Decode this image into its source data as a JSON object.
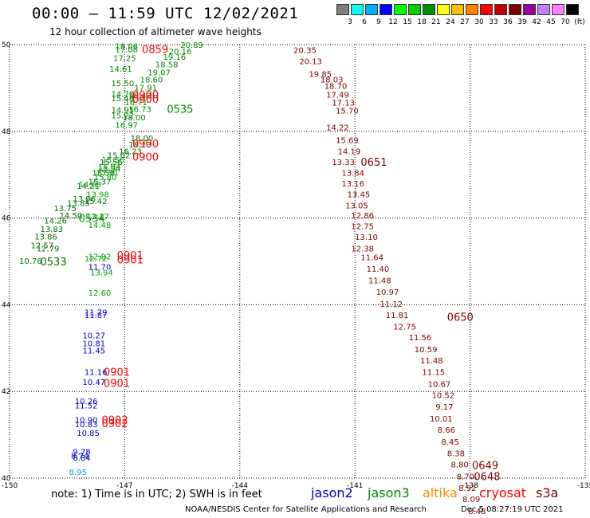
{
  "header": {
    "title": "00:00 – 11:59 UTC 12/02/2021",
    "subtitle": "12 hour collection of altimeter wave heights"
  },
  "color_scale": {
    "colors": [
      "#808080",
      "#00ffff",
      "#00b0ff",
      "#0000ff",
      "#00ff00",
      "#00d000",
      "#009000",
      "#ffff00",
      "#ffc000",
      "#ff8000",
      "#ff0000",
      "#c00000",
      "#800000",
      "#a000a0",
      "#c080ff",
      "#ff80ff",
      "#000000"
    ],
    "labels": [
      "3",
      "6",
      "9",
      "12",
      "15",
      "18",
      "21",
      "24",
      "27",
      "30",
      "33",
      "36",
      "39",
      "42",
      "45",
      "70",
      "(ft)"
    ]
  },
  "footer": {
    "note": "note:  1) Time is in UTC;  2) SWH is in feet",
    "satellites": [
      {
        "name": "jason2",
        "color": "#0000cc"
      },
      {
        "name": "jason3",
        "color": "#008800"
      },
      {
        "name": "altika",
        "color": "#ff8800"
      },
      {
        "name": "cryosat",
        "color": "#ff0000"
      },
      {
        "name": "s3a",
        "color": "#800000"
      }
    ],
    "credit": "NOAA/NESDIS Center for Satellite Applications and Research",
    "generated": "Dec  5 08:27:19 UTC 2021"
  },
  "chart_data": {
    "type": "scatter",
    "xlim": [
      -150,
      -135
    ],
    "ylim": [
      40,
      50
    ],
    "xticks": [
      -150,
      -147,
      -144,
      -141,
      -138,
      -135
    ],
    "yticks": [
      40,
      42,
      44,
      46,
      48,
      50
    ],
    "grid": "dotted",
    "xtick_labels": [
      "-150",
      "-147",
      "-144",
      "-141",
      "-138",
      "-135"
    ],
    "ytick_labels": [
      "40",
      "42",
      "44",
      "46",
      "48",
      "50"
    ],
    "tracks": [
      {
        "name": "track-0533",
        "color": "#007000",
        "time_label": "0533",
        "time_at": [
          -149.2,
          45.0
        ],
        "points": [
          [
            -149.75,
            45.02,
            "10.76"
          ],
          [
            -149.3,
            45.3,
            "12.79"
          ],
          [
            -149.45,
            45.38,
            "12.57"
          ],
          [
            -149.35,
            45.58,
            "13.86"
          ],
          [
            -149.2,
            45.75,
            "13.83"
          ],
          [
            -149.1,
            45.95,
            "14.26"
          ],
          [
            -148.7,
            46.07,
            "14.50"
          ],
          [
            -148.85,
            46.23,
            "13.75"
          ],
          [
            -148.5,
            46.35,
            "13.85"
          ],
          [
            -148.35,
            46.45,
            "13.96"
          ],
          [
            -148.05,
            46.4,
            "15.42"
          ],
          [
            -148.25,
            46.75,
            "14.21"
          ],
          [
            -147.95,
            46.85,
            "15.37"
          ],
          [
            -147.85,
            47.05,
            "15.50"
          ],
          [
            -147.7,
            47.15,
            "15.94"
          ],
          [
            -147.65,
            47.3,
            "15.56"
          ],
          [
            -147.45,
            47.45,
            "15.02"
          ],
          [
            -147.15,
            47.55,
            "16.23"
          ],
          [
            -146.9,
            47.7,
            "18.13"
          ],
          [
            -146.85,
            47.85,
            "18.00"
          ]
        ]
      },
      {
        "name": "track-0534",
        "color": "#00a000",
        "time_label": "0534",
        "time_at": [
          -148.2,
          46.0
        ],
        "points": [
          [
            -148.05,
            45.07,
            "12.72"
          ],
          [
            -147.95,
            45.12,
            "12.82"
          ],
          [
            -147.9,
            44.75,
            "13.94"
          ],
          [
            -147.95,
            44.28,
            "12.60"
          ],
          [
            -148.0,
            46.05,
            "13.17"
          ],
          [
            -147.95,
            45.85,
            "14.48"
          ],
          [
            -148.2,
            46.78,
            "14.68"
          ],
          [
            -148.0,
            46.55,
            "13.98"
          ],
          [
            -147.8,
            46.95,
            "15.80"
          ],
          [
            -147.75,
            47.06,
            "15.91"
          ],
          [
            -147.7,
            47.2,
            "15.94"
          ],
          [
            -147.6,
            47.35,
            "15.56"
          ]
        ]
      },
      {
        "name": "track-0535",
        "color": "#008800",
        "time_label": "0535",
        "time_at": [
          -145.9,
          48.52
        ],
        "points": [
          [
            -147.35,
            48.37,
            "15.22"
          ],
          [
            -147.35,
            48.5,
            "14.95"
          ],
          [
            -147.35,
            48.77,
            "15.48"
          ],
          [
            -147.35,
            48.87,
            "14.70"
          ],
          [
            -147.35,
            49.12,
            "15.50"
          ],
          [
            -147.4,
            49.45,
            "14.61"
          ],
          [
            -147.3,
            49.7,
            "17.25"
          ],
          [
            -147.25,
            49.9,
            "17.08"
          ],
          [
            -147.25,
            49.97,
            "18.06"
          ],
          [
            -145.55,
            50.0,
            "20.89"
          ],
          [
            -145.85,
            49.85,
            "20.16"
          ],
          [
            -146.0,
            49.72,
            "19.16"
          ],
          [
            -146.2,
            49.55,
            "18.58"
          ],
          [
            -146.4,
            49.37,
            "19.07"
          ],
          [
            -146.6,
            49.2,
            "18.60"
          ],
          [
            -146.75,
            49.02,
            "17.91"
          ],
          [
            -146.9,
            48.83,
            "18.42"
          ],
          [
            -147.0,
            48.68,
            "16.71"
          ],
          [
            -146.9,
            48.52,
            "16.73"
          ],
          [
            -147.05,
            48.33,
            "18.00"
          ],
          [
            -147.25,
            48.15,
            "16.97"
          ]
        ]
      },
      {
        "name": "track-0859",
        "color": "#ff0000",
        "time_label": "0859",
        "time_at": [
          -146.55,
          49.9
        ],
        "points": []
      },
      {
        "name": "track-0900",
        "color": "#ff0000",
        "time_label": "0900",
        "time_at": [
          -146.8,
          48.85
        ],
        "points": []
      },
      {
        "name": "track-0900b",
        "color": "#ff0000",
        "time_label": "0900",
        "time_at": [
          -146.8,
          48.75
        ],
        "points": []
      },
      {
        "name": "track-0900c",
        "color": "#ff0000",
        "time_label": "0900",
        "time_at": [
          -146.8,
          47.72
        ],
        "points": []
      },
      {
        "name": "track-0900d",
        "color": "#ff0000",
        "time_label": "0900",
        "time_at": [
          -146.8,
          47.42
        ],
        "points": []
      },
      {
        "name": "track-0901",
        "color": "#ff0000",
        "time_label": "0901",
        "time_at": [
          -147.2,
          45.15
        ],
        "points": []
      },
      {
        "name": "track-0901b",
        "color": "#ff0000",
        "time_label": "0901",
        "time_at": [
          -147.2,
          45.05
        ],
        "points": []
      },
      {
        "name": "track-0901c",
        "color": "#ff0000",
        "time_label": "0901",
        "time_at": [
          -147.55,
          42.45
        ],
        "points": []
      },
      {
        "name": "track-0901d",
        "color": "#ff0000",
        "time_label": "0901",
        "time_at": [
          -147.55,
          42.2
        ],
        "points": []
      },
      {
        "name": "track-0902",
        "color": "#ff0000",
        "time_label": "0902",
        "time_at": [
          -147.6,
          41.35
        ],
        "points": []
      },
      {
        "name": "track-0902b",
        "color": "#ff0000",
        "time_label": "0902",
        "time_at": [
          -147.6,
          41.27
        ],
        "points": []
      },
      {
        "name": "cryosat-blue",
        "color": "#0000cc",
        "time_label": "",
        "time_at": null,
        "points": [
          [
            -147.95,
            44.88,
            "11.70"
          ],
          [
            -148.05,
            43.83,
            "11.79"
          ],
          [
            -148.05,
            43.77,
            "11.87"
          ],
          [
            -148.1,
            43.3,
            "10.27"
          ],
          [
            -148.1,
            43.12,
            "10.81"
          ],
          [
            -148.1,
            42.95,
            "11.45"
          ],
          [
            -148.05,
            42.45,
            "11.16"
          ],
          [
            -148.1,
            42.22,
            "10.47"
          ],
          [
            -148.3,
            41.78,
            "10.26"
          ],
          [
            -148.3,
            41.68,
            "11.52"
          ],
          [
            -148.3,
            41.35,
            "10.90"
          ],
          [
            -148.3,
            41.25,
            "10.83"
          ],
          [
            -148.25,
            41.05,
            "10.85"
          ],
          [
            -148.35,
            40.62,
            "9.78"
          ],
          [
            -148.35,
            40.48,
            "8.84"
          ],
          [
            -148.4,
            40.52,
            "8.74"
          ]
        ]
      },
      {
        "name": "cryosat-cyan",
        "color": "#00aacc",
        "time_label": "",
        "time_at": null,
        "points": [
          [
            -148.45,
            40.15,
            "8.95"
          ]
        ]
      },
      {
        "name": "track-0651",
        "color": "#800000",
        "time_label": "0651",
        "time_at": [
          -140.85,
          47.3
        ],
        "points": [
          [
            -142.6,
            49.88,
            "20.35"
          ],
          [
            -142.45,
            49.62,
            "20.13"
          ],
          [
            -142.2,
            49.33,
            "19.85"
          ],
          [
            -141.9,
            49.2,
            "18.03"
          ],
          [
            -141.8,
            49.05,
            "18.70"
          ],
          [
            -141.75,
            48.85,
            "17.49"
          ],
          [
            -141.6,
            48.67,
            "17.13"
          ],
          [
            -141.5,
            48.48,
            "15.70"
          ],
          [
            -141.75,
            48.1,
            "14.22"
          ],
          [
            -141.5,
            47.8,
            "15.69"
          ],
          [
            -141.45,
            47.55,
            "14.19"
          ],
          [
            -141.6,
            47.3,
            "13.33"
          ],
          [
            -141.35,
            47.05,
            "13.84"
          ],
          [
            -141.35,
            46.8,
            "13.16"
          ],
          [
            -141.2,
            46.55,
            "13.45"
          ],
          [
            -141.25,
            46.3,
            "13.05"
          ],
          [
            -141.1,
            46.07,
            "12.86"
          ],
          [
            -141.1,
            45.82,
            "12.75"
          ],
          [
            -141.0,
            45.57,
            "13.10"
          ],
          [
            -141.1,
            45.3,
            "12.38"
          ]
        ]
      },
      {
        "name": "track-0650",
        "color": "#800000",
        "time_label": "0650",
        "time_at": [
          -138.6,
          43.72
        ],
        "points": [
          [
            -140.85,
            45.1,
            "11.64"
          ],
          [
            -140.7,
            44.83,
            "11.40"
          ],
          [
            -140.65,
            44.57,
            "11.48"
          ],
          [
            -140.45,
            44.3,
            "10.97"
          ],
          [
            -140.35,
            44.03,
            "11.12"
          ],
          [
            -140.2,
            43.77,
            "11.81"
          ],
          [
            -140.0,
            43.5,
            "12.75"
          ],
          [
            -139.6,
            43.25,
            "11.56"
          ],
          [
            -139.45,
            42.98,
            "10.59"
          ],
          [
            -139.3,
            42.72,
            "11.48"
          ],
          [
            -139.25,
            42.45,
            "11.15"
          ],
          [
            -139.1,
            42.18,
            "10.67"
          ],
          [
            -139.0,
            41.92,
            "10.52"
          ],
          [
            -138.9,
            41.65,
            "9.17"
          ],
          [
            -139.05,
            41.38,
            "10.01"
          ]
        ]
      },
      {
        "name": "track-0649",
        "color": "#800000",
        "time_label": "0649",
        "time_at": [
          -137.95,
          40.3
        ],
        "points": [
          [
            -138.85,
            41.12,
            "8.66"
          ],
          [
            -138.75,
            40.85,
            "8.45"
          ],
          [
            -138.6,
            40.58,
            "8.38"
          ],
          [
            -138.5,
            40.32,
            "8.80"
          ],
          [
            -138.35,
            40.05,
            "8.70"
          ],
          [
            -138.3,
            39.78,
            "8.92"
          ],
          [
            -138.2,
            39.52,
            "8.09"
          ],
          [
            -138.05,
            39.25,
            "8.48"
          ]
        ]
      },
      {
        "name": "track-0648",
        "color": "#800000",
        "time_label": "0648",
        "time_at": [
          -137.9,
          40.05
        ],
        "points": []
      }
    ]
  }
}
